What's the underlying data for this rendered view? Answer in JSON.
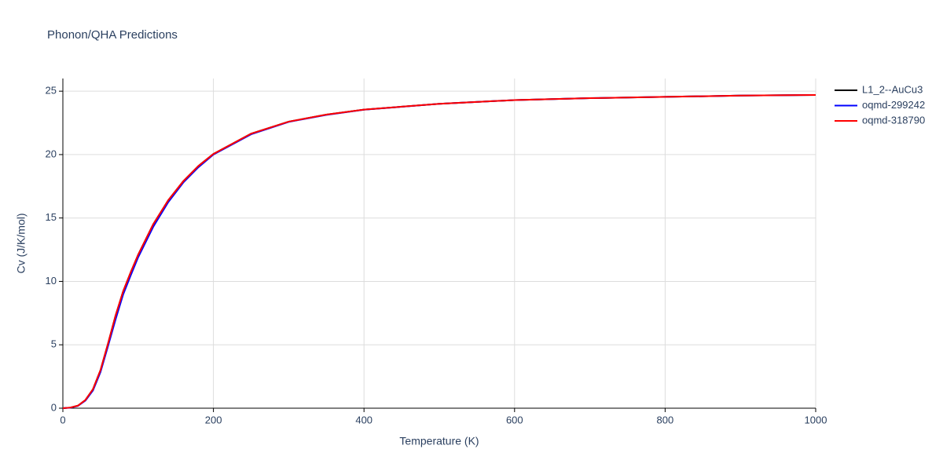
{
  "chart_data": {
    "type": "line",
    "title": "Phonon/QHA Predictions",
    "x_label": "Temperature (K)",
    "y_label": "Cv (J/K/mol)",
    "x": [
      0,
      10,
      20,
      30,
      40,
      50,
      60,
      70,
      80,
      90,
      100,
      120,
      140,
      160,
      180,
      200,
      250,
      300,
      350,
      400,
      500,
      600,
      700,
      800,
      900,
      1000
    ],
    "series": [
      {
        "name": "L1_2--AuCu3",
        "color": "#000000",
        "values": [
          0,
          0.05,
          0.2,
          0.65,
          1.5,
          3.0,
          5.1,
          7.3,
          9.2,
          10.7,
          12.1,
          14.5,
          16.4,
          17.9,
          19.1,
          20.05,
          21.65,
          22.6,
          23.15,
          23.55,
          24.0,
          24.3,
          24.45,
          24.55,
          24.65,
          24.7
        ]
      },
      {
        "name": "oqmd-299242",
        "color": "#0000ff",
        "values": [
          0,
          0.04,
          0.18,
          0.6,
          1.4,
          2.85,
          4.9,
          7.0,
          8.95,
          10.45,
          11.9,
          14.3,
          16.25,
          17.8,
          19.0,
          20.0,
          21.6,
          22.58,
          23.13,
          23.54,
          24.0,
          24.3,
          24.45,
          24.55,
          24.65,
          24.7
        ]
      },
      {
        "name": "oqmd-318790",
        "color": "#ff0000",
        "values": [
          0,
          0.05,
          0.2,
          0.65,
          1.5,
          3.0,
          5.1,
          7.3,
          9.2,
          10.7,
          12.1,
          14.5,
          16.4,
          17.9,
          19.1,
          20.05,
          21.65,
          22.6,
          23.15,
          23.55,
          24.0,
          24.3,
          24.45,
          24.55,
          24.65,
          24.7
        ]
      }
    ],
    "xlim": [
      0,
      1000
    ],
    "xticks": [
      0,
      200,
      400,
      600,
      800,
      1000
    ],
    "ylim": [
      0,
      26
    ],
    "yticks": [
      0,
      5,
      10,
      15,
      20,
      25
    ],
    "grid": true,
    "legend": "right"
  }
}
